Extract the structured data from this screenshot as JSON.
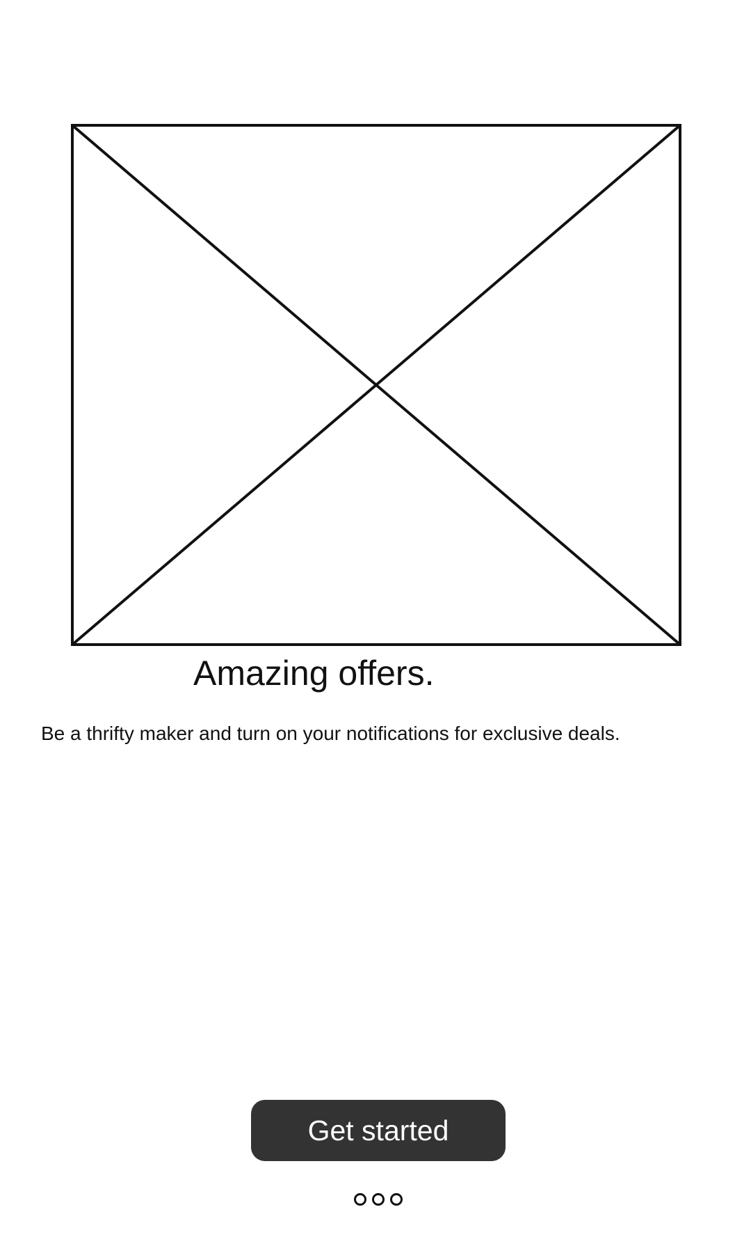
{
  "hero": {
    "placeholder_icon": "image-placeholder-icon"
  },
  "onboarding": {
    "title": "Amazing offers.",
    "subtitle": "Be a thrifty maker and turn on your notifications for exclusive deals."
  },
  "cta": {
    "label": "Get started",
    "color": "#333333"
  },
  "pager": {
    "count": 3,
    "items": [
      "page 1",
      "page 2",
      "page 3"
    ]
  }
}
